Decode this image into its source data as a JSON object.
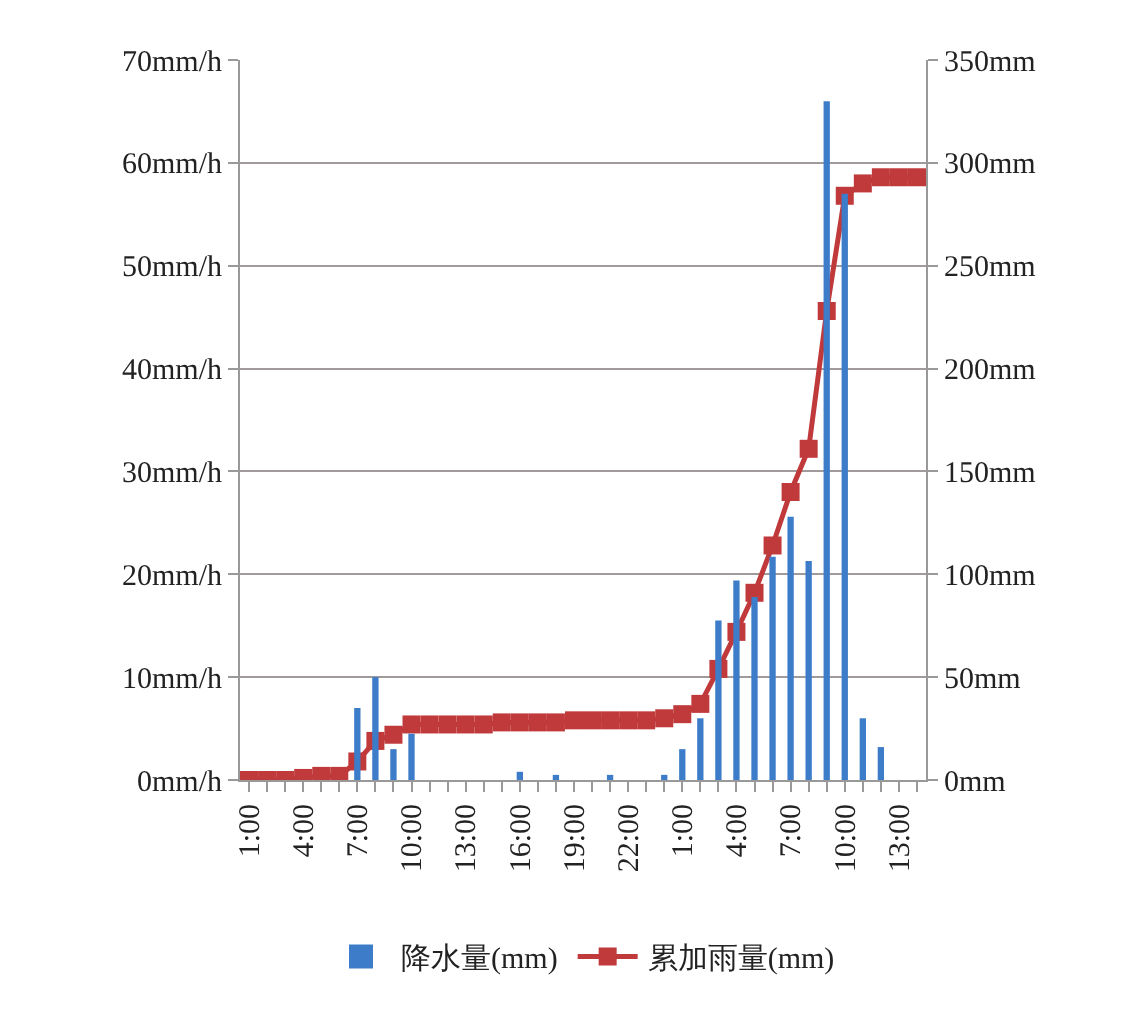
{
  "chart_data": {
    "type": "bar",
    "categories": [
      "1:00",
      null,
      null,
      "4:00",
      null,
      null,
      "7:00",
      null,
      null,
      "10:00",
      null,
      null,
      "13:00",
      null,
      null,
      "16:00",
      null,
      null,
      "19:00",
      null,
      null,
      "22:00",
      null,
      null,
      "1:00",
      null,
      null,
      "4:00",
      null,
      null,
      "7:00",
      null,
      null,
      "10:00",
      null,
      null,
      "13:00",
      null
    ],
    "series": [
      {
        "name": "降水量(mm)",
        "color": "#3d7cc9",
        "values": [
          0,
          0,
          0,
          0,
          0,
          0,
          7,
          10,
          3,
          4.5,
          0,
          0,
          0,
          0,
          0,
          0.8,
          0,
          0.5,
          0,
          0,
          0.5,
          0,
          0,
          0.5,
          3,
          6,
          15.5,
          19.4,
          17.8,
          21.7,
          25.6,
          21.3,
          66,
          57,
          6,
          3.2,
          0,
          0
        ]
      },
      {
        "name": "累加雨量(mm)",
        "type": "line",
        "axis": "y2",
        "color": "#c0393b",
        "values": [
          0,
          0,
          0,
          1,
          2,
          2,
          9,
          19,
          22,
          27,
          27,
          27,
          27,
          27,
          28,
          28,
          28,
          28,
          29,
          29,
          29,
          29,
          29,
          30,
          32,
          37,
          54,
          72,
          91,
          114,
          140,
          161,
          228,
          284,
          290,
          293,
          293,
          293
        ]
      }
    ],
    "ylim": [
      0,
      70
    ],
    "yticks": [
      {
        "value": 0,
        "label": "0mm/h"
      },
      {
        "value": 10,
        "label": "10mm/h"
      },
      {
        "value": 20,
        "label": "20mm/h"
      },
      {
        "value": 30,
        "label": "30mm/h"
      },
      {
        "value": 40,
        "label": "40mm/h"
      },
      {
        "value": 50,
        "label": "50mm/h"
      },
      {
        "value": 60,
        "label": "60mm/h"
      },
      {
        "value": 70,
        "label": "70mm/h"
      }
    ],
    "y2lim": [
      0,
      350
    ],
    "y2ticks": [
      {
        "value": 0,
        "label": "0mm"
      },
      {
        "value": 50,
        "label": "50mm"
      },
      {
        "value": 100,
        "label": "100mm"
      },
      {
        "value": 150,
        "label": "150mm"
      },
      {
        "value": 200,
        "label": "200mm"
      },
      {
        "value": 250,
        "label": "250mm"
      },
      {
        "value": 300,
        "label": "300mm"
      },
      {
        "value": 350,
        "label": "350mm"
      }
    ],
    "grid": "y",
    "legend": "bottom",
    "marker": "square",
    "line_style": "solid"
  }
}
